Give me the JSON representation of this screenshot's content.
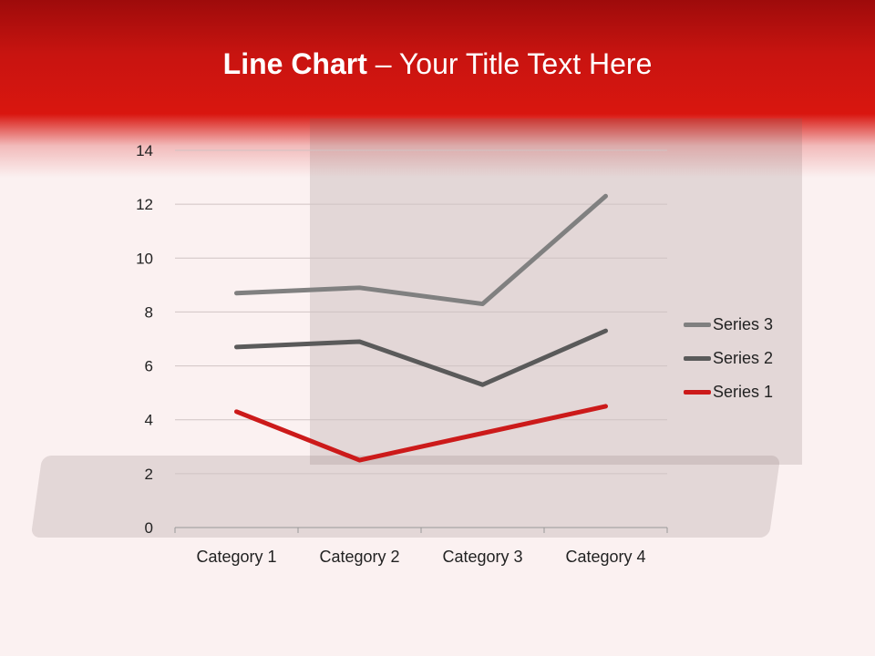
{
  "slide": {
    "title_bold": "Line Chart",
    "title_rest": " – Your Title Text Here"
  },
  "chart_data": {
    "type": "line",
    "stacked": true,
    "categories": [
      "Category 1",
      "Category 2",
      "Category 3",
      "Category 4"
    ],
    "series": [
      {
        "name": "Series 1",
        "values": [
          4.3,
          2.5,
          3.5,
          4.5
        ],
        "color": "#cc1a1a"
      },
      {
        "name": "Series 2",
        "values": [
          2.4,
          4.4,
          1.8,
          2.8
        ],
        "color": "#5a5a5a"
      },
      {
        "name": "Series 3",
        "values": [
          2,
          2,
          3,
          5
        ],
        "color": "#808080"
      }
    ],
    "ylim": [
      0,
      14
    ],
    "yticks": [
      "0",
      "2",
      "4",
      "6",
      "8",
      "10",
      "12",
      "14"
    ],
    "grid": true,
    "legend": "right"
  }
}
